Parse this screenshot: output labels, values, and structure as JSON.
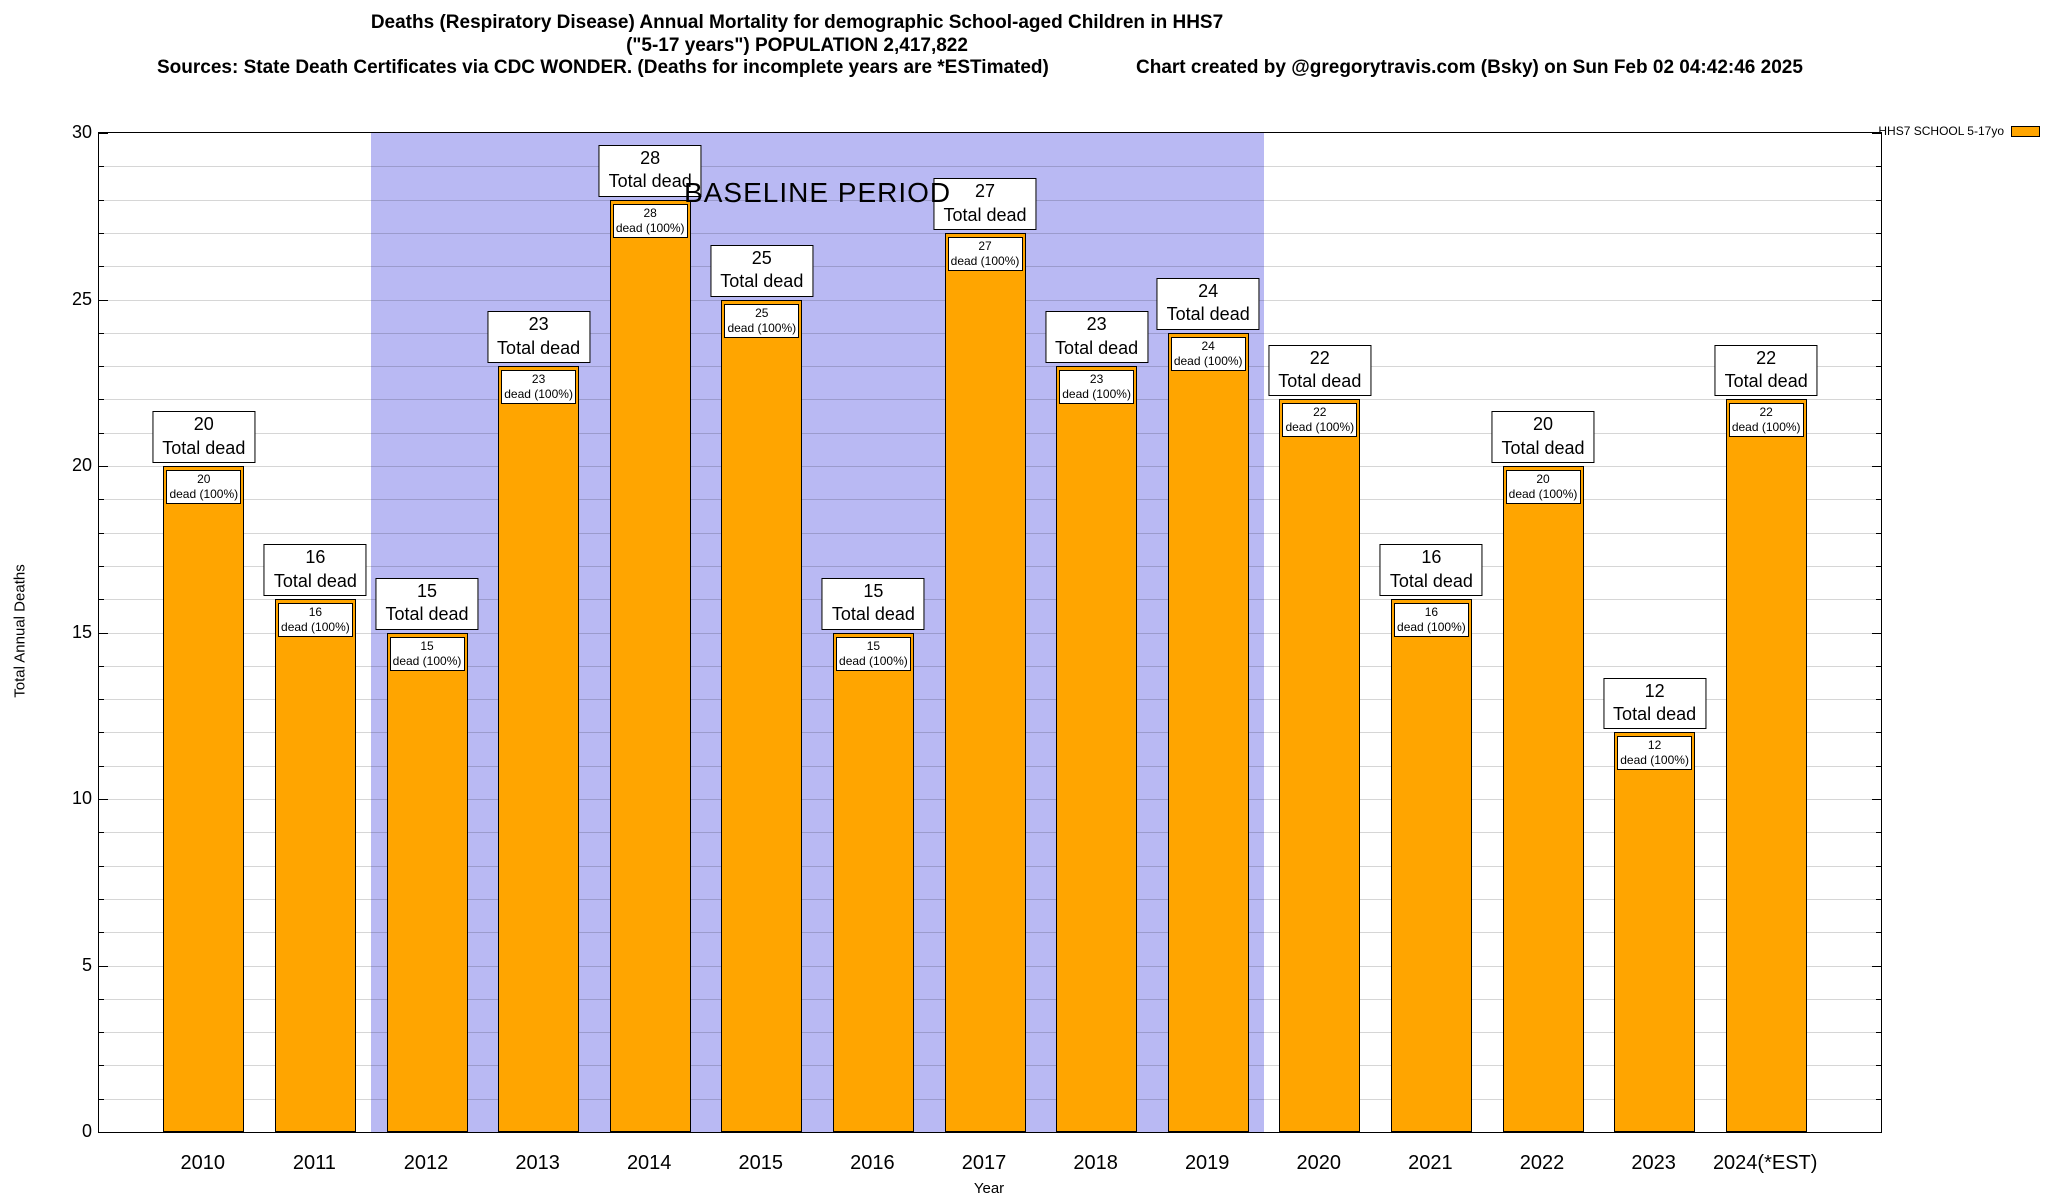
{
  "header": {
    "title": "Deaths (Respiratory Disease) Annual Mortality for demographic School-aged Children in HHS7",
    "subtitle": "(\"5-17 years\") POPULATION 2,417,822",
    "sources": "Sources: State Death Certificates via CDC WONDER. (Deaths for incomplete years are *ESTimated)",
    "credit": "Chart created by @gregorytravis.com (Bsky) on Sun Feb 02 04:42:46 2025"
  },
  "chart_data": {
    "type": "bar",
    "title": "Deaths (Respiratory Disease) Annual Mortality for demographic School-aged Children in HHS7",
    "subtitle": "(\"5-17 years\") POPULATION 2,417,822",
    "categories": [
      "2010",
      "2011",
      "2012",
      "2013",
      "2014",
      "2015",
      "2016",
      "2017",
      "2018",
      "2019",
      "2020",
      "2021",
      "2022",
      "2023",
      "2024(*EST)"
    ],
    "series": [
      {
        "name": "HHS7 SCHOOL 5-17yo",
        "values": [
          20,
          16,
          15,
          23,
          28,
          25,
          15,
          27,
          23,
          24,
          22,
          16,
          20,
          12,
          22
        ]
      }
    ],
    "bar_top_label_suffix": "Total dead",
    "bar_inner_label_suffix": "dead (100%)",
    "xlabel": "Year",
    "ylabel": "Total Annual Deaths",
    "ylim": [
      0,
      30
    ],
    "yticks": [
      0,
      5,
      10,
      15,
      20,
      25,
      30
    ],
    "ytick_interval": 5,
    "grid": true,
    "bar_color": "#FFA500",
    "baseline_period": {
      "label": "BASELINE PERIOD",
      "start_category": "2012",
      "end_category": "2019",
      "band_color": "#B9B9F3"
    },
    "legend": {
      "label": "HHS7 SCHOOL 5-17yo",
      "swatch_color": "#FFA500",
      "position": "top-right"
    }
  }
}
